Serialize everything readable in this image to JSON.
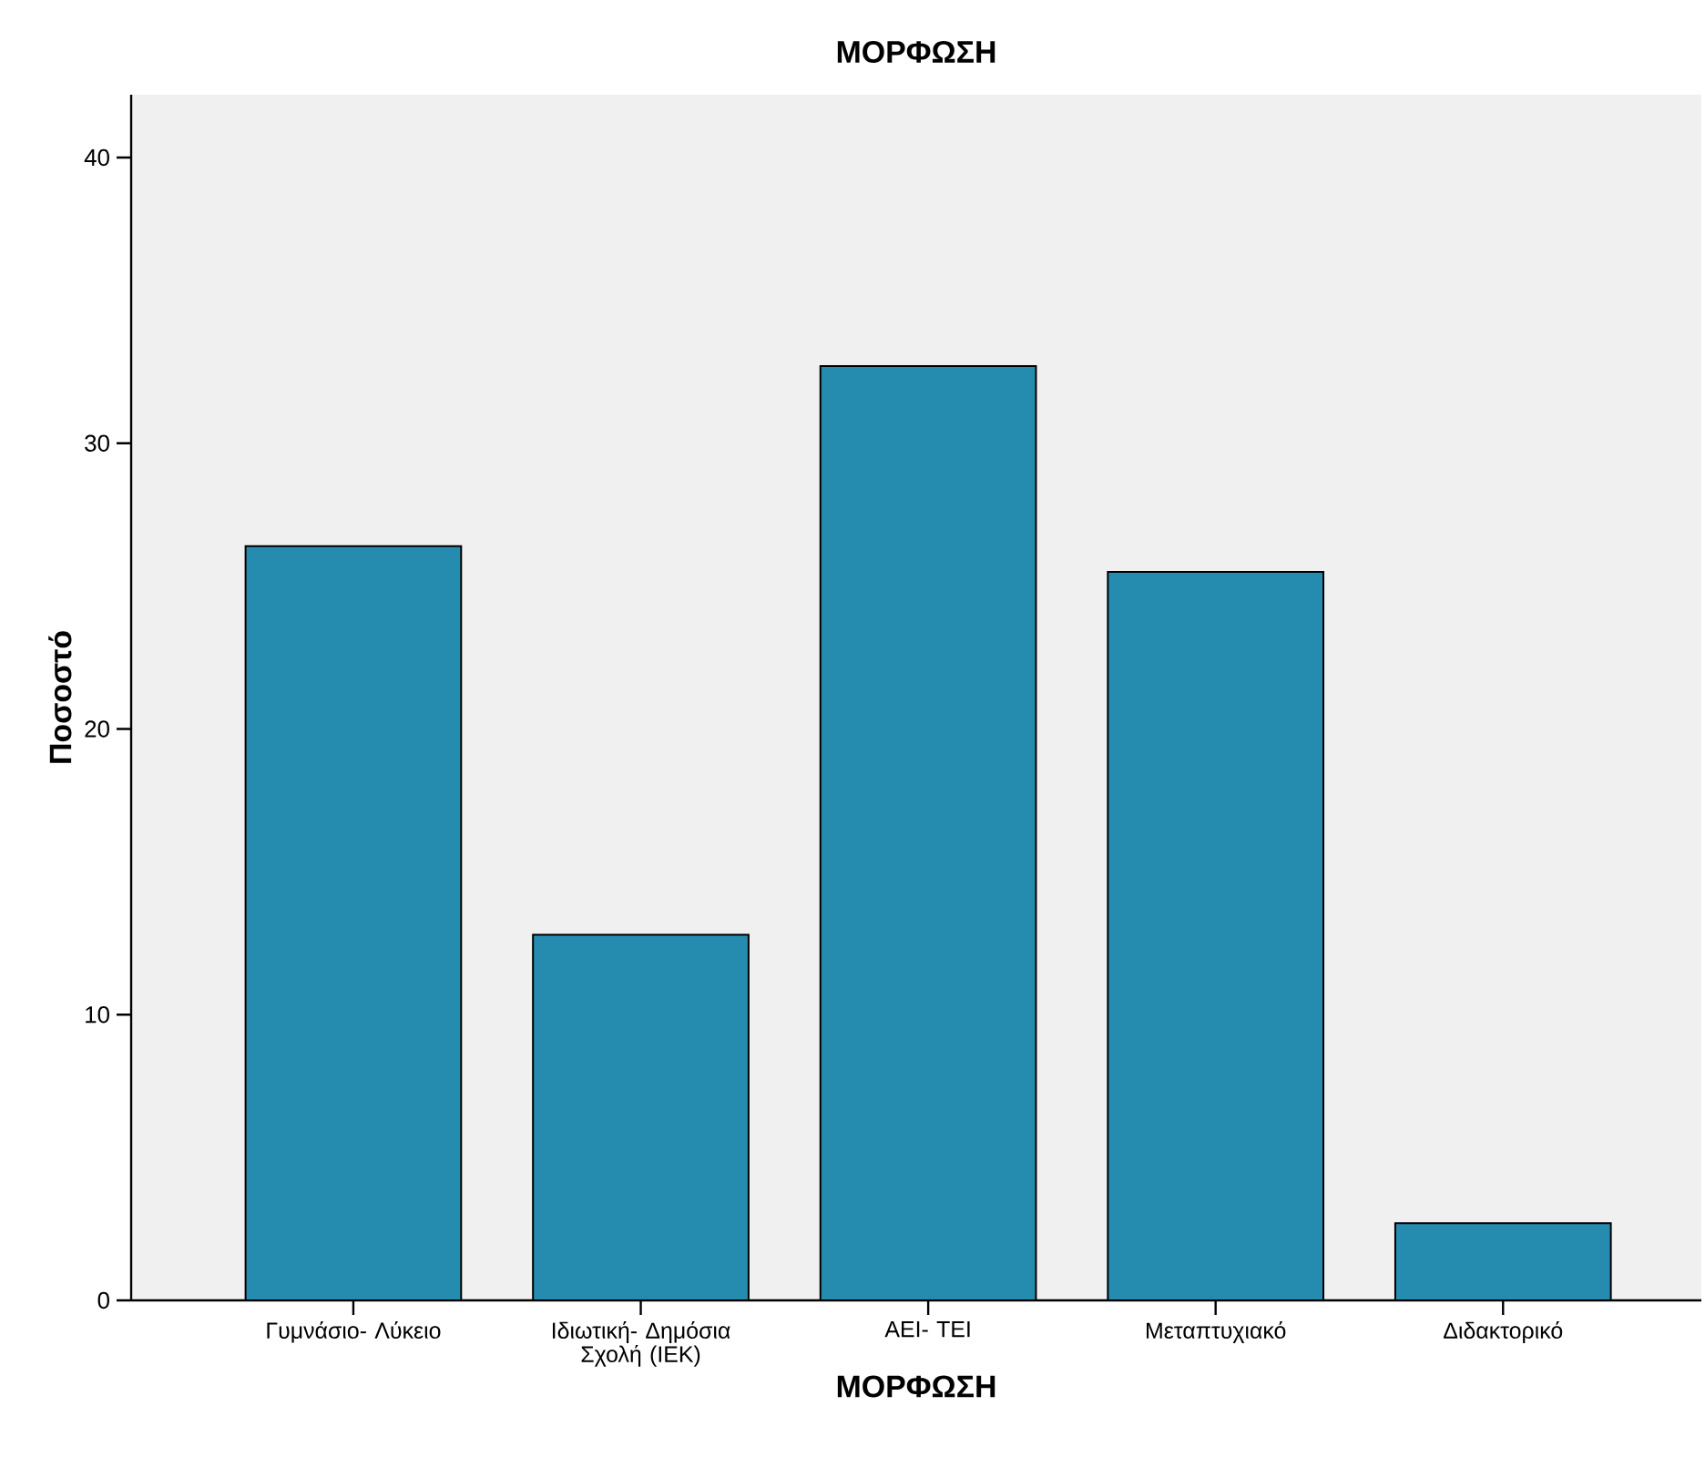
{
  "chart_data": {
    "type": "bar",
    "title": "ΜΟΡΦΩΣΗ",
    "xlabel": "ΜΟΡΦΩΣΗ",
    "ylabel": "Ποσοστό",
    "categories": [
      "Γυμνάσιο- Λύκειο",
      "Ιδιωτική- Δημόσια Σχολή (ΙΕΚ)",
      "ΑΕΙ- ΤΕΙ",
      "Μεταπτυχιακό",
      "Διδακτορικό"
    ],
    "values": [
      26.4,
      12.8,
      32.7,
      25.5,
      2.7
    ],
    "color": "#268caf",
    "ylim": [
      0,
      42.2
    ],
    "yticks": [
      0,
      10,
      20,
      30,
      40
    ]
  }
}
